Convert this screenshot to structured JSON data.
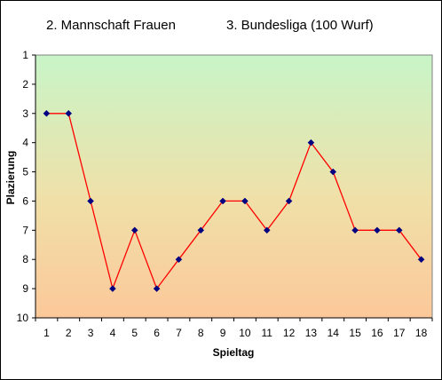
{
  "header": {
    "title_left": "2. Mannschaft Frauen",
    "title_right": "3. Bundesliga (100 Wurf)"
  },
  "chart_data": {
    "type": "line",
    "title": "2. Mannschaft Frauen 3. Bundesliga (100 Wurf)",
    "xlabel": "Spieltag",
    "ylabel": "Plazierung",
    "x": [
      1,
      2,
      3,
      4,
      5,
      6,
      7,
      8,
      9,
      10,
      11,
      12,
      13,
      14,
      15,
      16,
      17,
      18
    ],
    "series": [
      {
        "name": "",
        "values": [
          3,
          3,
          6,
          9,
          7,
          9,
          8,
          7,
          6,
          6,
          7,
          6,
          4,
          5,
          7,
          7,
          7,
          8
        ]
      }
    ],
    "xlim": [
      0.5,
      18.5
    ],
    "ylim": [
      1,
      10
    ],
    "y_inverted": true,
    "y_ticks": [
      1,
      2,
      3,
      4,
      5,
      6,
      7,
      8,
      9,
      10
    ],
    "grid": false,
    "legend": "none",
    "colors": {
      "line": "#ff0000",
      "marker": "#000080",
      "background_top": "#c8f5c8",
      "background_bottom": "#fcc89a"
    }
  }
}
